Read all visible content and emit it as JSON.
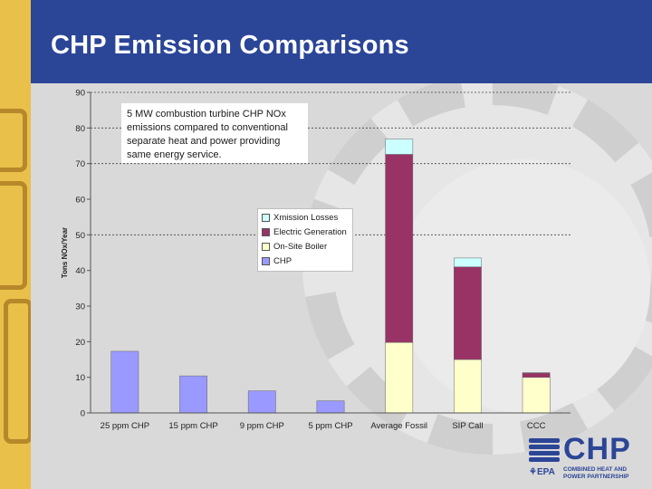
{
  "slide": {
    "title": "CHP Emission Comparisons",
    "header_color": "#2b4597",
    "band_color": "#e9c04a"
  },
  "annotation": {
    "lines": [
      "5 MW combustion turbine CHP NOx",
      "emissions compared to conventional",
      "separate heat and power providing",
      "same energy service."
    ]
  },
  "logo": {
    "brand": "CHP",
    "agency": "EPA",
    "subtitle_lines": [
      "COMBINED HEAT AND",
      "POWER PARTNERSHIP"
    ]
  },
  "chart_data": {
    "type": "bar",
    "stacked": true,
    "ylabel": "Tons NOx/Year",
    "xlabel": "",
    "ylim": [
      0,
      90
    ],
    "yticks": [
      0,
      10,
      20,
      30,
      40,
      50,
      60,
      70,
      80,
      90
    ],
    "gridlines": [
      50,
      70,
      80,
      90
    ],
    "categories": [
      "25 ppm CHP",
      "15 ppm CHP",
      "9 ppm CHP",
      "5 ppm CHP",
      "Average Fossil",
      "SIP Call",
      "CCC"
    ],
    "series": [
      {
        "name": "CHP",
        "color": "#9999ff",
        "values": [
          17.3,
          10.4,
          6.2,
          3.4,
          0,
          0,
          0
        ]
      },
      {
        "name": "On-Site Boiler",
        "color": "#ffffcc",
        "values": [
          0,
          0,
          0,
          0,
          19.8,
          15.0,
          10.0
        ]
      },
      {
        "name": "Electric Generation",
        "color": "#993366",
        "values": [
          0,
          0,
          0,
          0,
          52.8,
          26.0,
          1.2
        ]
      },
      {
        "name": "Xmission Losses",
        "color": "#ccffff",
        "values": [
          0,
          0,
          0,
          0,
          4.3,
          2.5,
          0.1
        ]
      }
    ],
    "legend_order": [
      "Xmission Losses",
      "Electric Generation",
      "On-Site Boiler",
      "CHP"
    ],
    "legend_position": "center"
  }
}
